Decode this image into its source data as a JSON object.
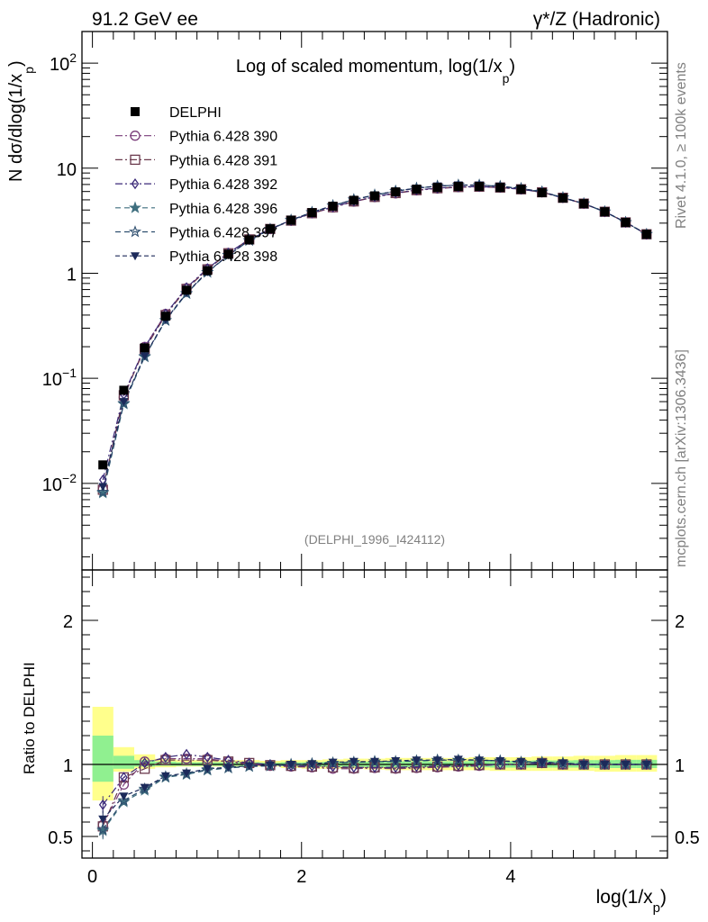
{
  "header": {
    "left": "91.2 GeV ee",
    "right": "γ*/Z (Hadronic)"
  },
  "side_labels": {
    "rivet": "Rivet 4.1.0, ≥ 100k events",
    "mcplots": "mcplots.cern.ch [arXiv:1306.3436]"
  },
  "chart_data": [
    {
      "type": "line",
      "title": "Log of scaled momentum, log(1/x",
      "title_sub": "p",
      "title_close": ")",
      "ylabel": "N  dσ/dlog(1/x",
      "ylabel_sub": "p",
      "ylabel_close": ")",
      "yscale": "log",
      "ylim": [
        0.0015,
        200
      ],
      "xlim": [
        -0.1,
        5.5
      ],
      "y_ticks": [
        {
          "value": 100,
          "label": "10",
          "sup": "2"
        },
        {
          "value": 10,
          "label": "10",
          "sup": ""
        },
        {
          "value": 1,
          "label": "1",
          "sup": ""
        },
        {
          "value": 0.1,
          "label": "10",
          "sup": "−1"
        },
        {
          "value": 0.01,
          "label": "10",
          "sup": "−2"
        }
      ],
      "watermark": "(DELPHI_1996_I424112)",
      "x": [
        0.1,
        0.3,
        0.5,
        0.7,
        0.9,
        1.1,
        1.3,
        1.5,
        1.7,
        1.9,
        2.1,
        2.3,
        2.5,
        2.7,
        2.9,
        3.1,
        3.3,
        3.5,
        3.7,
        3.9,
        4.1,
        4.3,
        4.5,
        4.7,
        4.9,
        5.1,
        5.3
      ],
      "data": {
        "name": "DELPHI",
        "values": [
          0.015,
          0.077,
          0.195,
          0.39,
          0.69,
          1.06,
          1.52,
          2.08,
          2.65,
          3.2,
          3.78,
          4.35,
          4.95,
          5.45,
          5.95,
          6.3,
          6.55,
          6.7,
          6.7,
          6.55,
          6.3,
          5.85,
          5.2,
          4.6,
          3.85,
          3.05,
          2.35
        ]
      },
      "series": [
        {
          "name": "Pythia 6.428 390",
          "color": "#7a3d7a",
          "dash": "8,3,2,3",
          "marker": "circle-open",
          "values": [
            0.0088,
            0.066,
            0.199,
            0.41,
            0.72,
            1.1,
            1.56,
            2.09,
            2.63,
            3.16,
            3.72,
            4.22,
            4.8,
            5.3,
            5.75,
            6.15,
            6.4,
            6.6,
            6.65,
            6.55,
            6.3,
            5.9,
            5.25,
            4.6,
            3.85,
            3.05,
            2.35
          ]
        },
        {
          "name": "Pythia 6.428 391",
          "color": "#6b3a4e",
          "dash": "8,3,2,3",
          "marker": "square-open",
          "values": [
            0.0087,
            0.069,
            0.19,
            0.4,
            0.71,
            1.09,
            1.55,
            2.1,
            2.64,
            3.17,
            3.73,
            4.25,
            4.83,
            5.33,
            5.8,
            6.18,
            6.45,
            6.62,
            6.67,
            6.55,
            6.3,
            5.9,
            5.23,
            4.6,
            3.85,
            3.05,
            2.35
          ]
        },
        {
          "name": "Pythia 6.428 392",
          "color": "#3b2a78",
          "dash": "8,3,2,3",
          "marker": "diamond-open",
          "values": [
            0.0108,
            0.07,
            0.197,
            0.41,
            0.73,
            1.11,
            1.56,
            2.1,
            2.65,
            3.18,
            3.75,
            4.28,
            4.85,
            5.35,
            5.82,
            6.2,
            6.47,
            6.65,
            6.68,
            6.56,
            6.3,
            5.9,
            5.22,
            4.6,
            3.85,
            3.05,
            2.35
          ]
        },
        {
          "name": "Pythia 6.428 396",
          "color": "#3f6f7f",
          "dash": "6,4",
          "marker": "star-filled",
          "values": [
            0.0081,
            0.057,
            0.16,
            0.355,
            0.64,
            1.02,
            1.48,
            2.05,
            2.62,
            3.2,
            3.8,
            4.4,
            5.02,
            5.55,
            6.05,
            6.45,
            6.75,
            6.9,
            6.9,
            6.72,
            6.4,
            5.95,
            5.25,
            4.6,
            3.85,
            3.05,
            2.35
          ]
        },
        {
          "name": "Pythia 6.428 397",
          "color": "#2f4f6f",
          "dash": "6,4",
          "marker": "star-open",
          "values": [
            0.0083,
            0.058,
            0.162,
            0.357,
            0.645,
            1.025,
            1.485,
            2.055,
            2.625,
            3.205,
            3.8,
            4.4,
            5.02,
            5.55,
            6.05,
            6.45,
            6.75,
            6.9,
            6.9,
            6.72,
            6.4,
            5.95,
            5.25,
            4.6,
            3.85,
            3.05,
            2.35
          ]
        },
        {
          "name": "Pythia 6.428 398",
          "color": "#1c2a5a",
          "dash": "5,3",
          "marker": "triangle-down-filled",
          "values": [
            0.0093,
            0.06,
            0.163,
            0.36,
            0.65,
            1.03,
            1.49,
            2.06,
            2.63,
            3.21,
            3.81,
            4.41,
            5.03,
            5.56,
            6.06,
            6.46,
            6.76,
            6.91,
            6.91,
            6.73,
            6.41,
            5.96,
            5.26,
            4.61,
            3.86,
            3.06,
            2.36
          ]
        }
      ]
    },
    {
      "type": "line",
      "ylabel": "Ratio to DELPHI",
      "xlabel": "log(1/x",
      "xlabel_sub": "p",
      "xlabel_close": ")",
      "ylim": [
        0.35,
        2.35
      ],
      "xlim": [
        -0.1,
        5.5
      ],
      "y_ticks": [
        0.5,
        1,
        2
      ],
      "x_ticks": [
        0,
        2,
        4
      ],
      "band_yellow": [
        [
          0.75,
          1.4
        ],
        [
          0.95,
          1.12
        ],
        [
          0.97,
          1.07
        ],
        [
          0.98,
          1.04
        ],
        [
          0.985,
          1.03
        ],
        [
          0.985,
          1.03
        ],
        [
          0.985,
          1.03
        ],
        [
          0.985,
          1.03
        ],
        [
          0.985,
          1.025
        ],
        [
          0.975,
          1.03
        ],
        [
          0.97,
          1.03
        ],
        [
          0.97,
          1.035
        ],
        [
          0.97,
          1.04
        ],
        [
          0.965,
          1.04
        ],
        [
          0.96,
          1.045
        ],
        [
          0.96,
          1.045
        ],
        [
          0.96,
          1.045
        ],
        [
          0.96,
          1.045
        ],
        [
          0.96,
          1.05
        ],
        [
          0.955,
          1.05
        ],
        [
          0.955,
          1.05
        ],
        [
          0.955,
          1.055
        ],
        [
          0.955,
          1.055
        ],
        [
          0.955,
          1.06
        ],
        [
          0.95,
          1.06
        ],
        [
          0.95,
          1.065
        ],
        [
          0.95,
          1.065
        ]
      ],
      "band_green": [
        [
          0.88,
          1.2
        ],
        [
          0.97,
          1.06
        ],
        [
          0.985,
          1.03
        ],
        [
          0.99,
          1.02
        ],
        [
          0.99,
          1.015
        ],
        [
          0.99,
          1.015
        ],
        [
          0.99,
          1.015
        ],
        [
          0.99,
          1.015
        ],
        [
          0.99,
          1.012
        ],
        [
          0.988,
          1.015
        ],
        [
          0.985,
          1.015
        ],
        [
          0.985,
          1.018
        ],
        [
          0.985,
          1.02
        ],
        [
          0.982,
          1.02
        ],
        [
          0.98,
          1.022
        ],
        [
          0.98,
          1.022
        ],
        [
          0.98,
          1.022
        ],
        [
          0.98,
          1.022
        ],
        [
          0.98,
          1.025
        ],
        [
          0.978,
          1.025
        ],
        [
          0.978,
          1.025
        ],
        [
          0.978,
          1.028
        ],
        [
          0.978,
          1.028
        ],
        [
          0.978,
          1.03
        ],
        [
          0.975,
          1.03
        ],
        [
          0.975,
          1.032
        ],
        [
          0.975,
          1.032
        ]
      ],
      "series": [
        {
          "name": "Pythia 6.428 390",
          "values": [
            0.58,
            0.86,
            1.02,
            1.04,
            1.04,
            1.04,
            1.02,
            1.0,
            0.99,
            0.985,
            0.98,
            0.97,
            0.97,
            0.975,
            0.97,
            0.975,
            0.98,
            0.985,
            0.99,
            1.0,
            1.0,
            1.01,
            1.0,
            1.0,
            1.0,
            1.0,
            1.0
          ]
        },
        {
          "name": "Pythia 6.428 391",
          "values": [
            0.57,
            0.91,
            0.97,
            1.03,
            1.03,
            1.03,
            1.02,
            1.01,
            0.995,
            0.99,
            0.985,
            0.98,
            0.975,
            0.98,
            0.975,
            0.98,
            0.985,
            0.99,
            0.995,
            1.0,
            1.0,
            1.01,
            1.0,
            1.0,
            1.0,
            1.0,
            1.0
          ]
        },
        {
          "name": "Pythia 6.428 392",
          "values": [
            0.72,
            0.91,
            1.01,
            1.05,
            1.07,
            1.05,
            1.03,
            1.01,
            1.0,
            0.99,
            0.99,
            0.985,
            0.98,
            0.98,
            0.98,
            0.985,
            0.99,
            0.993,
            0.997,
            1.0,
            1.0,
            1.01,
            1.0,
            1.0,
            1.0,
            1.0,
            1.0
          ]
        },
        {
          "name": "Pythia 6.428 396",
          "values": [
            0.54,
            0.74,
            0.82,
            0.91,
            0.93,
            0.96,
            0.975,
            0.985,
            0.99,
            1.0,
            1.005,
            1.01,
            1.015,
            1.02,
            1.02,
            1.025,
            1.03,
            1.03,
            1.03,
            1.025,
            1.015,
            1.015,
            1.01,
            1.0,
            1.0,
            1.0,
            1.0
          ]
        },
        {
          "name": "Pythia 6.428 397",
          "values": [
            0.55,
            0.75,
            0.83,
            0.915,
            0.935,
            0.965,
            0.977,
            0.988,
            0.99,
            1.0,
            1.005,
            1.01,
            1.015,
            1.02,
            1.02,
            1.025,
            1.03,
            1.03,
            1.03,
            1.025,
            1.015,
            1.015,
            1.01,
            1.0,
            1.0,
            1.0,
            1.0
          ]
        },
        {
          "name": "Pythia 6.428 398",
          "values": [
            0.62,
            0.78,
            0.84,
            0.92,
            0.94,
            0.97,
            0.98,
            0.99,
            0.995,
            1.0,
            1.005,
            1.015,
            1.02,
            1.02,
            1.025,
            1.03,
            1.03,
            1.035,
            1.03,
            1.025,
            1.02,
            1.015,
            1.01,
            1.0,
            1.0,
            1.0,
            1.0
          ]
        }
      ]
    }
  ]
}
